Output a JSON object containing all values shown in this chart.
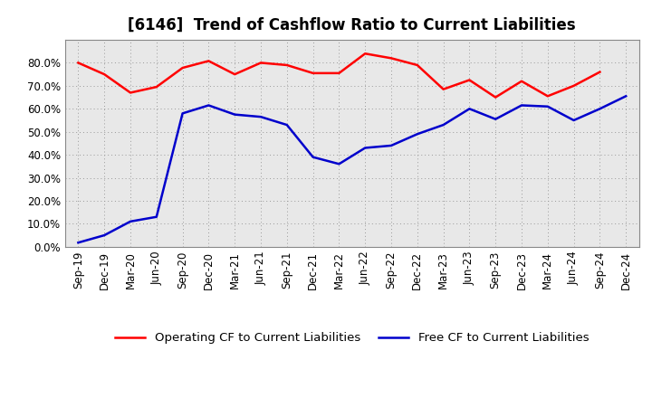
{
  "title": "[6146]  Trend of Cashflow Ratio to Current Liabilities",
  "x_labels": [
    "Sep-19",
    "Dec-19",
    "Mar-20",
    "Jun-20",
    "Sep-20",
    "Dec-20",
    "Mar-21",
    "Jun-21",
    "Sep-21",
    "Dec-21",
    "Mar-22",
    "Jun-22",
    "Sep-22",
    "Dec-22",
    "Mar-23",
    "Jun-23",
    "Sep-23",
    "Dec-23",
    "Mar-24",
    "Jun-24",
    "Sep-24",
    "Dec-24"
  ],
  "operating_cf": [
    0.8,
    0.75,
    0.67,
    0.695,
    0.778,
    0.808,
    0.75,
    0.8,
    0.79,
    0.755,
    0.755,
    0.84,
    0.82,
    0.79,
    0.685,
    0.725,
    0.65,
    0.72,
    0.655,
    0.7,
    0.76,
    null
  ],
  "free_cf": [
    0.018,
    0.05,
    0.11,
    0.13,
    0.58,
    0.615,
    0.575,
    0.565,
    0.53,
    0.39,
    0.36,
    0.43,
    0.44,
    0.49,
    0.53,
    0.6,
    0.555,
    0.615,
    0.61,
    0.55,
    0.6,
    0.655
  ],
  "operating_color": "#FF0000",
  "free_color": "#0000CC",
  "ylim": [
    0.0,
    0.9
  ],
  "yticks": [
    0.0,
    0.1,
    0.2,
    0.3,
    0.4,
    0.5,
    0.6,
    0.7,
    0.8
  ],
  "legend_labels": [
    "Operating CF to Current Liabilities",
    "Free CF to Current Liabilities"
  ],
  "background_color": "#FFFFFF",
  "plot_background": "#E8E8E8",
  "grid_color": "#999999",
  "title_fontsize": 12,
  "axis_fontsize": 8.5,
  "legend_fontsize": 9.5
}
